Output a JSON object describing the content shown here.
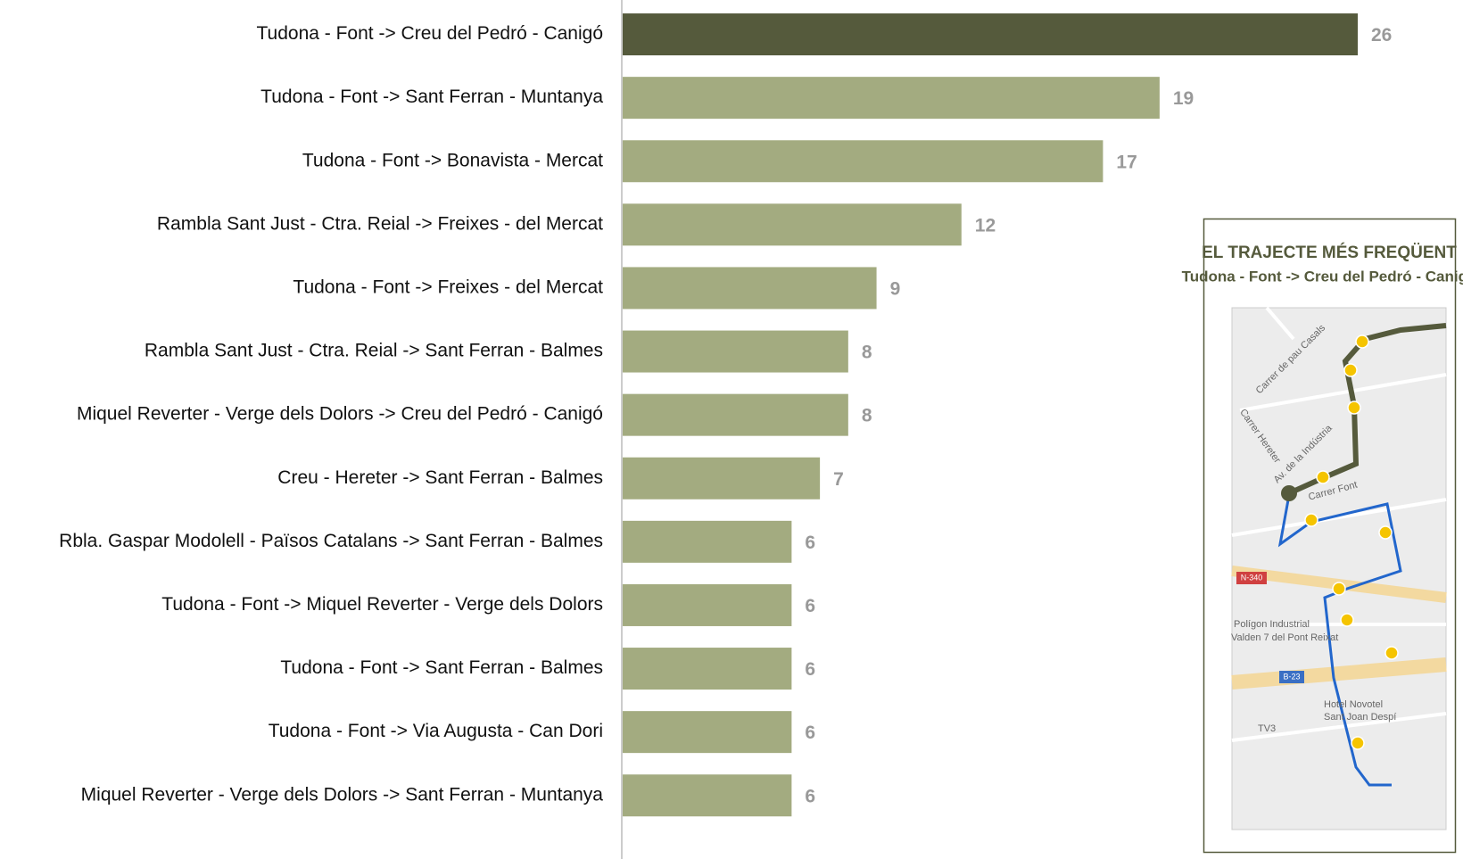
{
  "chart_data": {
    "type": "bar",
    "orientation": "horizontal",
    "categories": [
      "Tudona - Font -> Creu del Pedró - Canigó",
      "Tudona - Font -> Sant Ferran - Muntanya",
      "Tudona - Font -> Bonavista - Mercat",
      "Rambla Sant Just - Ctra. Reial -> Freixes - del Mercat",
      "Tudona - Font -> Freixes - del Mercat",
      "Rambla Sant Just - Ctra. Reial -> Sant Ferran - Balmes",
      "Miquel Reverter - Verge dels Dolors -> Creu del Pedró - Canigó",
      "Creu - Hereter -> Sant Ferran - Balmes",
      "Rbla. Gaspar Modolell - Països Catalans -> Sant Ferran - Balmes",
      "Tudona - Font -> Miquel Reverter - Verge dels Dolors",
      "Tudona - Font -> Sant Ferran - Balmes",
      "Tudona - Font -> Via Augusta - Can Dori",
      "Miquel Reverter - Verge dels Dolors -> Sant Ferran - Muntanya"
    ],
    "values": [
      26,
      19,
      17,
      12,
      9,
      8,
      8,
      7,
      6,
      6,
      6,
      6,
      6
    ],
    "colors": [
      "#555a3c",
      "#a3ab80",
      "#a3ab80",
      "#a3ab80",
      "#a3ab80",
      "#a3ab80",
      "#a3ab80",
      "#a3ab80",
      "#a3ab80",
      "#a3ab80",
      "#a3ab80",
      "#a3ab80",
      "#a3ab80"
    ]
  },
  "inset": {
    "title": "EL TRAJECTE MÉS FREQÜENT",
    "subtitle": "Tudona - Font -> Creu del Pedró - Canigó",
    "map_labels": [
      "Carrer de pau Casals",
      "Carrer Hereter",
      "Av. de la Indústria",
      "Carrer Font",
      "N-340",
      "Polígon Industrial",
      "Valden 7 del Pont Reixat",
      "B-23",
      "Hotel Novotel",
      "Sant Joan Despí",
      "TV3"
    ]
  }
}
